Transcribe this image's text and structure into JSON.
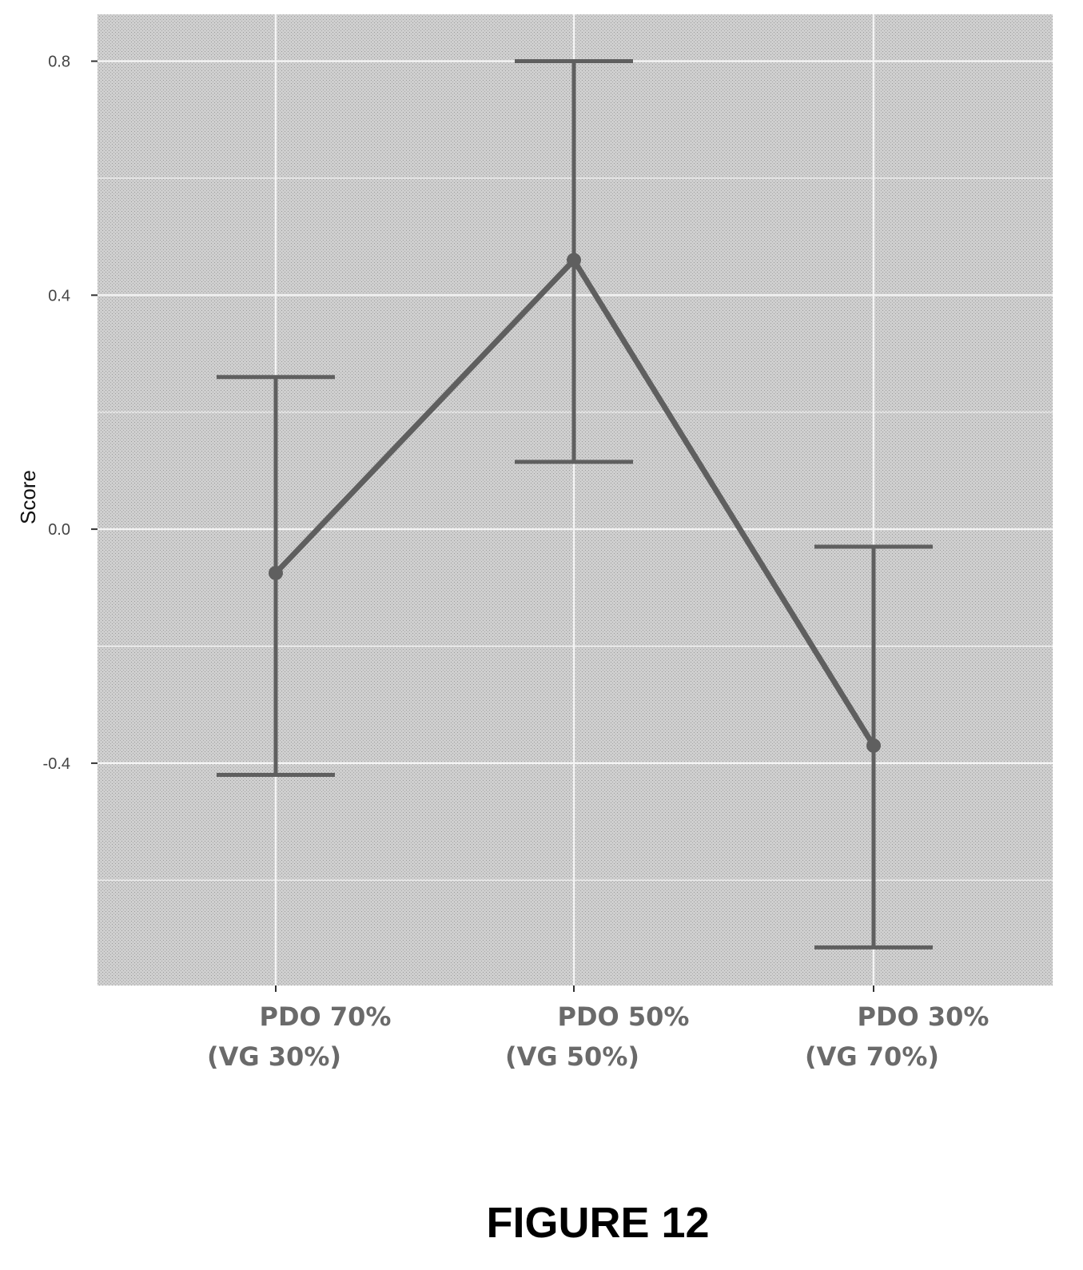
{
  "chart_data": {
    "type": "line",
    "title": "",
    "xlabel": "",
    "ylabel": "Score",
    "ylim": [
      -0.78,
      0.88
    ],
    "yticks": [
      0.8,
      0.4,
      0.0,
      -0.4
    ],
    "ytick_labels": [
      "0.8",
      "0.4",
      "0.0",
      "-0.4"
    ],
    "grid": true,
    "legend": "none",
    "categories": [
      {
        "line1": "PDO 70%",
        "line2": "(VG 30%)"
      },
      {
        "line1": "PDO 50%",
        "line2": "(VG 50%)"
      },
      {
        "line1": "PDO 30%",
        "line2": "(VG 70%)"
      }
    ],
    "series": [
      {
        "values": [
          -0.075,
          0.46,
          -0.37
        ],
        "error_upper": [
          0.26,
          0.8,
          -0.03
        ],
        "error_lower": [
          -0.42,
          0.115,
          -0.715
        ]
      }
    ],
    "colors": {
      "panel": "#d2d2d2",
      "grid": "#f4f4f4",
      "line": "#5f5f5f",
      "errorbar": "#5f5f5f"
    }
  },
  "caption": "FIGURE 12"
}
